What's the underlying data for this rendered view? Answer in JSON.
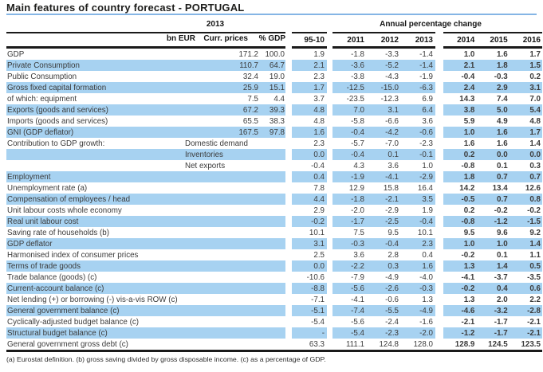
{
  "title": "Main features of country forecast - PORTUGAL",
  "header": {
    "group_2013": "2013",
    "group_annual_change": "Annual percentage change",
    "col_bn_eur": "bn EUR",
    "col_curr_prices": "Curr. prices",
    "col_pct_gdp": "% GDP",
    "col_95_10": "95-10",
    "years": [
      "2011",
      "2012",
      "2013",
      "2014",
      "2015",
      "2016"
    ]
  },
  "colors": {
    "stripe_blue": "#a7d2f1",
    "title_rule_blue": "#85b5e5",
    "border_black": "#1a1a1a",
    "text": "#3b3b3b"
  },
  "rows": [
    {
      "label": "GDP",
      "sublabel": "",
      "bn_eur_curr_prices": "171.2",
      "pct_gdp": "100.0",
      "avg_95_10": "1.9",
      "y": [
        "-1.8",
        "-3.3",
        "-1.4",
        "1.0",
        "1.6",
        "1.7"
      ]
    },
    {
      "label": "Private Consumption",
      "sublabel": "",
      "bn_eur_curr_prices": "110.7",
      "pct_gdp": "64.7",
      "avg_95_10": "2.1",
      "y": [
        "-3.6",
        "-5.2",
        "-1.4",
        "2.1",
        "1.8",
        "1.5"
      ]
    },
    {
      "label": "Public Consumption",
      "sublabel": "",
      "bn_eur_curr_prices": "32.4",
      "pct_gdp": "19.0",
      "avg_95_10": "2.3",
      "y": [
        "-3.8",
        "-4.3",
        "-1.9",
        "-0.4",
        "-0.3",
        "0.2"
      ]
    },
    {
      "label": "Gross fixed capital formation",
      "sublabel": "",
      "bn_eur_curr_prices": "25.9",
      "pct_gdp": "15.1",
      "avg_95_10": "1.7",
      "y": [
        "-12.5",
        "-15.0",
        "-6.3",
        "2.4",
        "2.9",
        "3.1"
      ]
    },
    {
      "label": "of which: equipment",
      "sublabel": "",
      "bn_eur_curr_prices": "7.5",
      "pct_gdp": "4.4",
      "avg_95_10": "3.7",
      "y": [
        "-23.5",
        "-12.3",
        "6.9",
        "14.3",
        "7.4",
        "7.0"
      ]
    },
    {
      "label": "Exports (goods and services)",
      "sublabel": "",
      "bn_eur_curr_prices": "67.2",
      "pct_gdp": "39.3",
      "avg_95_10": "4.8",
      "y": [
        "7.0",
        "3.1",
        "6.4",
        "3.8",
        "5.0",
        "5.4"
      ]
    },
    {
      "label": "Imports (goods and services)",
      "sublabel": "",
      "bn_eur_curr_prices": "65.5",
      "pct_gdp": "38.3",
      "avg_95_10": "4.8",
      "y": [
        "-5.8",
        "-6.6",
        "3.6",
        "5.9",
        "4.9",
        "4.8"
      ]
    },
    {
      "label": "GNI (GDP deflator)",
      "sublabel": "",
      "bn_eur_curr_prices": "167.5",
      "pct_gdp": "97.8",
      "avg_95_10": "1.6",
      "y": [
        "-0.4",
        "-4.2",
        "-0.6",
        "1.0",
        "1.6",
        "1.7"
      ]
    },
    {
      "label": "Contribution to GDP growth:",
      "sublabel": "Domestic demand",
      "bn_eur_curr_prices": "",
      "pct_gdp": "",
      "avg_95_10": "2.3",
      "y": [
        "-5.7",
        "-7.0",
        "-2.3",
        "1.6",
        "1.6",
        "1.4"
      ]
    },
    {
      "label": "",
      "sublabel": "Inventories",
      "bn_eur_curr_prices": "",
      "pct_gdp": "",
      "avg_95_10": "0.0",
      "y": [
        "-0.4",
        "0.1",
        "-0.1",
        "0.2",
        "0.0",
        "0.0"
      ]
    },
    {
      "label": "",
      "sublabel": "Net exports",
      "bn_eur_curr_prices": "",
      "pct_gdp": "",
      "avg_95_10": "-0.4",
      "y": [
        "4.3",
        "3.6",
        "1.0",
        "-0.8",
        "0.1",
        "0.3"
      ]
    },
    {
      "label": "Employment",
      "sublabel": "",
      "bn_eur_curr_prices": "",
      "pct_gdp": "",
      "avg_95_10": "0.4",
      "y": [
        "-1.9",
        "-4.1",
        "-2.9",
        "1.8",
        "0.7",
        "0.7"
      ]
    },
    {
      "label": "Unemployment rate (a)",
      "sublabel": "",
      "bn_eur_curr_prices": "",
      "pct_gdp": "",
      "avg_95_10": "7.8",
      "y": [
        "12.9",
        "15.8",
        "16.4",
        "14.2",
        "13.4",
        "12.6"
      ]
    },
    {
      "label": "Compensation of employees / head",
      "sublabel": "",
      "bn_eur_curr_prices": "",
      "pct_gdp": "",
      "avg_95_10": "4.4",
      "y": [
        "-1.8",
        "-2.1",
        "3.5",
        "-0.5",
        "0.7",
        "0.8"
      ]
    },
    {
      "label": "Unit labour costs whole economy",
      "sublabel": "",
      "bn_eur_curr_prices": "",
      "pct_gdp": "",
      "avg_95_10": "2.9",
      "y": [
        "-2.0",
        "-2.9",
        "1.9",
        "0.2",
        "-0.2",
        "-0.2"
      ]
    },
    {
      "label": "Real unit labour cost",
      "sublabel": "",
      "bn_eur_curr_prices": "",
      "pct_gdp": "",
      "avg_95_10": "-0.2",
      "y": [
        "-1.7",
        "-2.5",
        "-0.4",
        "-0.8",
        "-1.2",
        "-1.5"
      ]
    },
    {
      "label": "Saving rate of households (b)",
      "sublabel": "",
      "bn_eur_curr_prices": "",
      "pct_gdp": "",
      "avg_95_10": "10.1",
      "y": [
        "7.5",
        "9.5",
        "10.1",
        "9.5",
        "9.6",
        "9.2"
      ]
    },
    {
      "label": "GDP deflator",
      "sublabel": "",
      "bn_eur_curr_prices": "",
      "pct_gdp": "",
      "avg_95_10": "3.1",
      "y": [
        "-0.3",
        "-0.4",
        "2.3",
        "1.0",
        "1.0",
        "1.4"
      ]
    },
    {
      "label": "Harmonised index of consumer prices",
      "sublabel": "",
      "bn_eur_curr_prices": "",
      "pct_gdp": "",
      "avg_95_10": "2.5",
      "y": [
        "3.6",
        "2.8",
        "0.4",
        "-0.2",
        "0.1",
        "1.1"
      ]
    },
    {
      "label": "Terms of trade goods",
      "sublabel": "",
      "bn_eur_curr_prices": "",
      "pct_gdp": "",
      "avg_95_10": "0.0",
      "y": [
        "-2.2",
        "0.3",
        "1.6",
        "1.3",
        "1.4",
        "0.5"
      ]
    },
    {
      "label": "Trade balance (goods) (c)",
      "sublabel": "",
      "bn_eur_curr_prices": "",
      "pct_gdp": "",
      "avg_95_10": "-10.6",
      "y": [
        "-7.9",
        "-4.9",
        "-4.0",
        "-4.1",
        "-3.7",
        "-3.5"
      ]
    },
    {
      "label": "Current-account balance (c)",
      "sublabel": "",
      "bn_eur_curr_prices": "",
      "pct_gdp": "",
      "avg_95_10": "-8.8",
      "y": [
        "-5.6",
        "-2.6",
        "-0.3",
        "-0.2",
        "0.4",
        "0.6"
      ]
    },
    {
      "label": "Net lending (+) or borrowing (-) vis-a-vis ROW (c)",
      "sublabel": "",
      "bn_eur_curr_prices": "",
      "pct_gdp": "",
      "avg_95_10": "-7.1",
      "y": [
        "-4.1",
        "-0.6",
        "1.3",
        "1.3",
        "2.0",
        "2.2"
      ]
    },
    {
      "label": "General government balance (c)",
      "sublabel": "",
      "bn_eur_curr_prices": "",
      "pct_gdp": "",
      "avg_95_10": "-5.1",
      "y": [
        "-7.4",
        "-5.5",
        "-4.9",
        "-4.6",
        "-3.2",
        "-2.8"
      ]
    },
    {
      "label": "Cyclically-adjusted budget balance (c)",
      "sublabel": "",
      "bn_eur_curr_prices": "",
      "pct_gdp": "",
      "avg_95_10": "-5.4",
      "y": [
        "-5.6",
        "-2.4",
        "-1.6",
        "-2.1",
        "-1.7",
        "-2.1"
      ]
    },
    {
      "label": "Structural budget balance (c)",
      "sublabel": "",
      "bn_eur_curr_prices": "",
      "pct_gdp": "",
      "avg_95_10": "-",
      "y": [
        "-5.4",
        "-2.3",
        "-2.0",
        "-1.2",
        "-1.7",
        "-2.1"
      ]
    },
    {
      "label": "General government gross debt (c)",
      "sublabel": "",
      "bn_eur_curr_prices": "",
      "pct_gdp": "",
      "avg_95_10": "63.3",
      "y": [
        "111.1",
        "124.8",
        "128.0",
        "128.9",
        "124.5",
        "123.5"
      ]
    }
  ],
  "footnote": "(a) Eurostat definition.  (b) gross saving divided by gross disposable income.  (c) as a percentage of GDP."
}
